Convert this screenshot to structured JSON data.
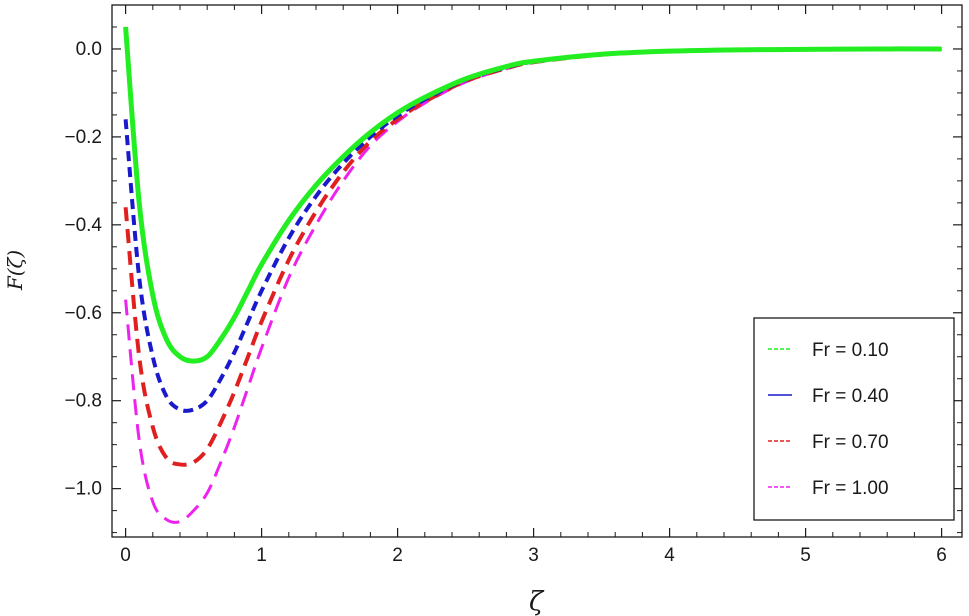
{
  "chart_data": {
    "type": "line",
    "title": "",
    "xlabel": "ζ",
    "ylabel": "F(ζ)",
    "xlim": [
      -0.1,
      6.15
    ],
    "ylim": [
      -1.11,
      0.1
    ],
    "x_ticks": [
      0,
      1,
      2,
      3,
      4,
      5,
      6
    ],
    "x_tick_labels": [
      "0",
      "1",
      "2",
      "3",
      "4",
      "5",
      "6"
    ],
    "y_ticks": [
      0.0,
      -0.2,
      -0.4,
      -0.6,
      -0.8,
      -1.0
    ],
    "y_tick_labels": [
      "0.0",
      "−0.2",
      "−0.4",
      "−0.6",
      "−0.8",
      "−1.0"
    ],
    "grid": false,
    "legend_position": "bottom-right",
    "x": [
      0,
      0.1,
      0.2,
      0.3,
      0.4,
      0.5,
      0.6,
      0.7,
      0.8,
      0.9,
      1.0,
      1.2,
      1.4,
      1.6,
      1.8,
      2.0,
      2.2,
      2.5,
      2.8,
      3.0,
      3.5,
      4.0,
      4.5,
      5.0,
      5.5,
      6.0
    ],
    "series": [
      {
        "name": "Fr = 0.10",
        "color": "#22ee22",
        "values": [
          0.05,
          -0.35,
          -0.56,
          -0.66,
          -0.7,
          -0.71,
          -0.7,
          -0.66,
          -0.61,
          -0.55,
          -0.49,
          -0.39,
          -0.31,
          -0.245,
          -0.19,
          -0.145,
          -0.11,
          -0.068,
          -0.04,
          -0.028,
          -0.012,
          -0.005,
          -0.002,
          -0.001,
          0.0,
          0.0
        ]
      },
      {
        "name": "Fr = 0.40",
        "color": "#1a1acc",
        "values": [
          -0.16,
          -0.52,
          -0.7,
          -0.79,
          -0.82,
          -0.82,
          -0.8,
          -0.75,
          -0.69,
          -0.62,
          -0.55,
          -0.43,
          -0.335,
          -0.26,
          -0.2,
          -0.152,
          -0.115,
          -0.07,
          -0.042,
          -0.029,
          -0.012,
          -0.005,
          -0.002,
          -0.001,
          0.0,
          0.0
        ]
      },
      {
        "name": "Fr = 0.70",
        "color": "#e02020",
        "values": [
          -0.36,
          -0.7,
          -0.86,
          -0.93,
          -0.945,
          -0.94,
          -0.91,
          -0.85,
          -0.78,
          -0.7,
          -0.62,
          -0.48,
          -0.37,
          -0.28,
          -0.21,
          -0.16,
          -0.12,
          -0.073,
          -0.044,
          -0.03,
          -0.013,
          -0.005,
          -0.002,
          -0.001,
          0.0,
          0.0
        ]
      },
      {
        "name": "Fr = 1.00",
        "color": "#ee22ee",
        "values": [
          -0.57,
          -0.89,
          -1.03,
          -1.07,
          -1.075,
          -1.05,
          -1.01,
          -0.94,
          -0.86,
          -0.77,
          -0.68,
          -0.52,
          -0.4,
          -0.3,
          -0.22,
          -0.165,
          -0.123,
          -0.075,
          -0.045,
          -0.031,
          -0.013,
          -0.005,
          -0.002,
          -0.001,
          0.0,
          0.0
        ]
      }
    ]
  }
}
